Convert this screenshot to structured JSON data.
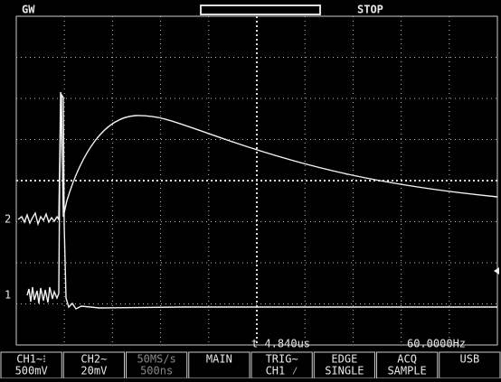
{
  "header": {
    "brand": "GW",
    "status": "STOP"
  },
  "channel_markers": [
    "2",
    "1"
  ],
  "readout": {
    "time": "t 4.840us",
    "frequency": "60.0000Hz"
  },
  "menu": [
    {
      "lines": [
        "CH1∼⁝",
        "500mV"
      ]
    },
    {
      "lines": [
        "CH2∼",
        "20mV"
      ]
    },
    {
      "lines": [
        "50MS/s",
        "500ns"
      ]
    },
    {
      "lines": [
        "MAIN"
      ]
    },
    {
      "lines": [
        "TRIG∼",
        "CH1 ⁄"
      ]
    },
    {
      "lines": [
        "EDGE",
        "SINGLE"
      ]
    },
    {
      "lines": [
        "ACQ",
        "SAMPLE"
      ]
    },
    {
      "lines": [
        "USB"
      ]
    }
  ]
}
